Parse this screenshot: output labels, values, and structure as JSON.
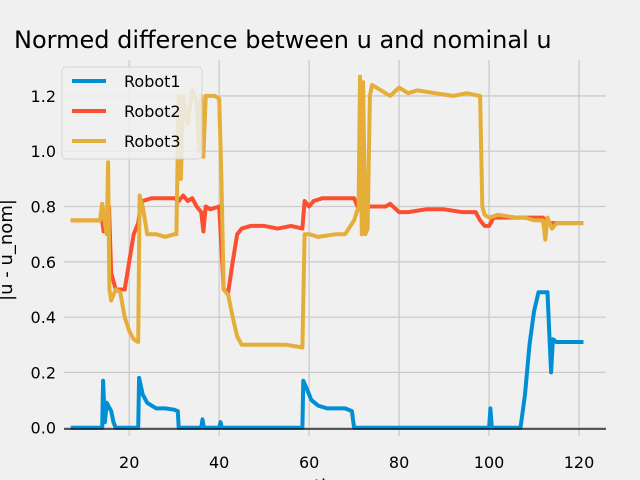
{
  "chart_data": {
    "type": "line",
    "title": "Normed difference between u and nominal u",
    "xlabel": "ti",
    "ylabel": "|u - u_nom|",
    "xlim": [
      5.5,
      126
    ],
    "ylim": [
      -0.03,
      1.33
    ],
    "xticks": [
      20,
      40,
      60,
      80,
      100,
      120
    ],
    "yticks": [
      0.0,
      0.2,
      0.4,
      0.6,
      0.8,
      1.0,
      1.2
    ],
    "grid": true,
    "legend_position": "top-left",
    "series": [
      {
        "name": "Robot1",
        "color": "#008fd5",
        "points": [
          [
            7,
            0
          ],
          [
            14,
            0
          ],
          [
            14.2,
            0.17
          ],
          [
            14.6,
            0.02
          ],
          [
            15,
            0.09
          ],
          [
            16,
            0.06
          ],
          [
            16.5,
            0.02
          ],
          [
            17,
            0
          ],
          [
            22,
            0
          ],
          [
            22.2,
            0.18
          ],
          [
            23,
            0.12
          ],
          [
            24,
            0.09
          ],
          [
            26,
            0.07
          ],
          [
            28,
            0.07
          ],
          [
            30,
            0.065
          ],
          [
            30.8,
            0.06
          ],
          [
            31,
            0
          ],
          [
            36,
            0
          ],
          [
            36.3,
            0.03
          ],
          [
            36.6,
            0
          ],
          [
            40,
            0
          ],
          [
            40.3,
            0.02
          ],
          [
            40.6,
            0
          ],
          [
            58.5,
            0
          ],
          [
            58.7,
            0.17
          ],
          [
            59.5,
            0.14
          ],
          [
            60.5,
            0.1
          ],
          [
            62,
            0.08
          ],
          [
            64,
            0.07
          ],
          [
            68,
            0.07
          ],
          [
            69.5,
            0.06
          ],
          [
            70,
            0
          ],
          [
            100,
            0
          ],
          [
            100.3,
            0.07
          ],
          [
            100.6,
            0
          ],
          [
            107,
            0
          ],
          [
            108,
            0.12
          ],
          [
            109,
            0.3
          ],
          [
            110,
            0.42
          ],
          [
            111,
            0.49
          ],
          [
            113,
            0.49
          ],
          [
            113.5,
            0.3
          ],
          [
            113.8,
            0.2
          ],
          [
            114.2,
            0.32
          ],
          [
            115,
            0.31
          ],
          [
            121,
            0.31
          ]
        ]
      },
      {
        "name": "Robot2",
        "color": "#fc4f30",
        "points": [
          [
            7,
            0.75
          ],
          [
            14,
            0.75
          ],
          [
            14.3,
            0.71
          ],
          [
            14.6,
            0.78
          ],
          [
            15,
            0.76
          ],
          [
            15.5,
            0.8
          ],
          [
            16,
            0.56
          ],
          [
            17,
            0.5
          ],
          [
            18,
            0.5
          ],
          [
            19,
            0.5
          ],
          [
            20,
            0.6
          ],
          [
            21,
            0.7
          ],
          [
            22,
            0.74
          ],
          [
            22.5,
            0.8
          ],
          [
            23,
            0.82
          ],
          [
            25,
            0.83
          ],
          [
            28,
            0.83
          ],
          [
            30,
            0.83
          ],
          [
            31,
            0.82
          ],
          [
            32,
            0.84
          ],
          [
            33,
            0.82
          ],
          [
            34,
            0.83
          ],
          [
            35,
            0.8
          ],
          [
            36,
            0.78
          ],
          [
            36.5,
            0.71
          ],
          [
            37,
            0.8
          ],
          [
            38,
            0.79
          ],
          [
            40,
            0.8
          ],
          [
            41,
            0.5
          ],
          [
            42,
            0.49
          ],
          [
            43,
            0.6
          ],
          [
            44,
            0.7
          ],
          [
            45,
            0.72
          ],
          [
            47,
            0.73
          ],
          [
            50,
            0.73
          ],
          [
            53,
            0.72
          ],
          [
            56,
            0.73
          ],
          [
            58.5,
            0.72
          ],
          [
            59,
            0.82
          ],
          [
            60,
            0.8
          ],
          [
            61,
            0.82
          ],
          [
            63,
            0.83
          ],
          [
            66,
            0.83
          ],
          [
            70,
            0.83
          ],
          [
            71,
            0.79
          ],
          [
            72,
            0.8
          ],
          [
            75,
            0.8
          ],
          [
            77,
            0.8
          ],
          [
            78,
            0.81
          ],
          [
            80,
            0.78
          ],
          [
            82,
            0.78
          ],
          [
            86,
            0.79
          ],
          [
            90,
            0.79
          ],
          [
            94,
            0.78
          ],
          [
            97,
            0.78
          ],
          [
            98,
            0.75
          ],
          [
            99,
            0.73
          ],
          [
            100,
            0.73
          ],
          [
            101,
            0.76
          ],
          [
            105,
            0.76
          ],
          [
            110,
            0.76
          ],
          [
            112,
            0.76
          ],
          [
            113,
            0.74
          ],
          [
            121,
            0.74
          ]
        ]
      },
      {
        "name": "Robot3",
        "color": "#e5ae38",
        "points": [
          [
            7,
            0.75
          ],
          [
            13.5,
            0.75
          ],
          [
            14,
            0.81
          ],
          [
            14.5,
            0.75
          ],
          [
            15,
            0.7
          ],
          [
            15.3,
            0.96
          ],
          [
            15.6,
            0.5
          ],
          [
            16,
            0.46
          ],
          [
            17,
            0.5
          ],
          [
            18,
            0.49
          ],
          [
            19,
            0.4
          ],
          [
            20,
            0.35
          ],
          [
            21,
            0.32
          ],
          [
            22,
            0.31
          ],
          [
            22.3,
            0.84
          ],
          [
            23,
            0.8
          ],
          [
            24,
            0.7
          ],
          [
            26,
            0.7
          ],
          [
            28,
            0.69
          ],
          [
            30,
            0.7
          ],
          [
            30.5,
            0.7
          ],
          [
            31,
            1.2
          ],
          [
            31.5,
            0.9
          ],
          [
            32,
            1.2
          ],
          [
            33,
            1.1
          ],
          [
            34,
            1.22
          ],
          [
            35,
            1.18
          ],
          [
            35.5,
            1.0
          ],
          [
            36,
            1.2
          ],
          [
            36.5,
            0.98
          ],
          [
            37,
            1.2
          ],
          [
            38,
            1.2
          ],
          [
            39,
            1.2
          ],
          [
            40,
            1.19
          ],
          [
            40.5,
            0.9
          ],
          [
            41,
            0.5
          ],
          [
            42,
            0.48
          ],
          [
            43,
            0.4
          ],
          [
            44,
            0.33
          ],
          [
            45,
            0.3
          ],
          [
            48,
            0.3
          ],
          [
            52,
            0.3
          ],
          [
            55,
            0.3
          ],
          [
            58.5,
            0.29
          ],
          [
            59,
            0.7
          ],
          [
            60,
            0.7
          ],
          [
            62,
            0.69
          ],
          [
            66,
            0.7
          ],
          [
            68,
            0.7
          ],
          [
            70,
            0.75
          ],
          [
            71,
            0.8
          ],
          [
            71.3,
            1.27
          ],
          [
            71.7,
            0.7
          ],
          [
            72,
            1.25
          ],
          [
            72.5,
            0.7
          ],
          [
            73,
            0.72
          ],
          [
            73.5,
            1.2
          ],
          [
            74,
            1.24
          ],
          [
            76,
            1.22
          ],
          [
            78,
            1.2
          ],
          [
            80,
            1.23
          ],
          [
            82,
            1.21
          ],
          [
            84,
            1.22
          ],
          [
            88,
            1.21
          ],
          [
            92,
            1.2
          ],
          [
            95,
            1.21
          ],
          [
            98,
            1.2
          ],
          [
            98.5,
            0.8
          ],
          [
            99,
            0.77
          ],
          [
            100,
            0.76
          ],
          [
            102,
            0.77
          ],
          [
            106,
            0.76
          ],
          [
            108,
            0.76
          ],
          [
            110,
            0.75
          ],
          [
            112,
            0.75
          ],
          [
            112.5,
            0.68
          ],
          [
            113,
            0.76
          ],
          [
            114,
            0.72
          ],
          [
            115,
            0.74
          ],
          [
            121,
            0.74
          ]
        ]
      }
    ]
  }
}
